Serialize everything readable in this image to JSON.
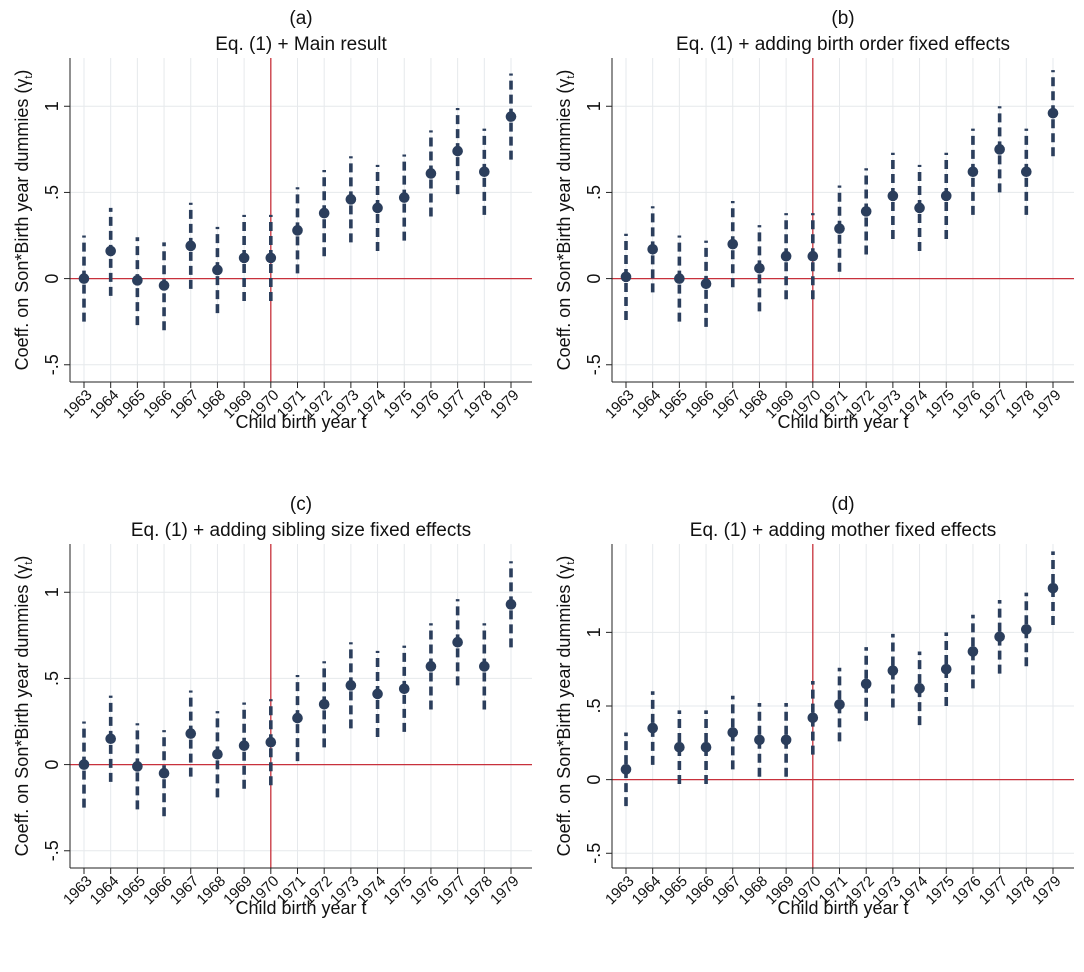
{
  "chart_data": [
    {
      "type": "scatter",
      "panel_label": "(a)",
      "title": "Eq. (1) + Main result",
      "xlabel": "Child birth year t",
      "ylabel": "Coeff. on Son*Birth year dummies (γ",
      "ylabel_subscript": "t",
      "ylabel_close": ")",
      "categories": [
        "1963",
        "1964",
        "1965",
        "1966",
        "1967",
        "1968",
        "1969",
        "1970",
        "1971",
        "1972",
        "1973",
        "1974",
        "1975",
        "1976",
        "1977",
        "1978",
        "1979"
      ],
      "y_ticks": [
        -0.5,
        0,
        0.5,
        1
      ],
      "y_tick_labels": [
        "-.5",
        "0",
        ".5",
        "1"
      ],
      "ylim": [
        -0.6,
        1.28
      ],
      "reference_x": "1970",
      "reference_y": 0,
      "series": [
        {
          "values": [
            0.0,
            0.16,
            -0.01,
            -0.04,
            0.19,
            0.05,
            0.12,
            0.12,
            0.28,
            0.38,
            0.46,
            0.41,
            0.47,
            0.61,
            0.74,
            0.62,
            0.94
          ],
          "ci_low": [
            -0.25,
            -0.1,
            -0.27,
            -0.3,
            -0.06,
            -0.2,
            -0.13,
            -0.13,
            0.03,
            0.13,
            0.21,
            0.16,
            0.22,
            0.36,
            0.49,
            0.37,
            0.69
          ],
          "ci_high": [
            0.25,
            0.41,
            0.24,
            0.21,
            0.44,
            0.3,
            0.37,
            0.37,
            0.53,
            0.63,
            0.71,
            0.66,
            0.72,
            0.86,
            0.99,
            0.87,
            1.19
          ]
        }
      ],
      "colors": {
        "marker": "#2b3e5c",
        "reference": "#c8313c",
        "grid": "#e6e9ec",
        "axis": "#222222"
      }
    },
    {
      "type": "scatter",
      "panel_label": "(b)",
      "title": "Eq. (1) + adding birth order fixed effects",
      "xlabel": "Child birth year t",
      "ylabel": "Coeff. on Son*Birth year dummies (γ",
      "ylabel_subscript": "t",
      "ylabel_close": ")",
      "categories": [
        "1963",
        "1964",
        "1965",
        "1966",
        "1967",
        "1968",
        "1969",
        "1970",
        "1971",
        "1972",
        "1973",
        "1974",
        "1975",
        "1976",
        "1977",
        "1978",
        "1979"
      ],
      "y_ticks": [
        -0.5,
        0,
        0.5,
        1
      ],
      "y_tick_labels": [
        "-.5",
        "0",
        ".5",
        "1"
      ],
      "ylim": [
        -0.6,
        1.28
      ],
      "reference_x": "1970",
      "reference_y": 0,
      "series": [
        {
          "values": [
            0.01,
            0.17,
            0.0,
            -0.03,
            0.2,
            0.06,
            0.13,
            0.13,
            0.29,
            0.39,
            0.48,
            0.41,
            0.48,
            0.62,
            0.75,
            0.62,
            0.96
          ],
          "ci_low": [
            -0.24,
            -0.08,
            -0.25,
            -0.28,
            -0.05,
            -0.19,
            -0.12,
            -0.12,
            0.04,
            0.14,
            0.23,
            0.16,
            0.23,
            0.37,
            0.5,
            0.37,
            0.71
          ],
          "ci_high": [
            0.26,
            0.42,
            0.25,
            0.22,
            0.45,
            0.31,
            0.38,
            0.38,
            0.54,
            0.64,
            0.73,
            0.66,
            0.73,
            0.87,
            1.0,
            0.87,
            1.21
          ]
        }
      ],
      "colors": {
        "marker": "#2b3e5c",
        "reference": "#c8313c",
        "grid": "#e6e9ec",
        "axis": "#222222"
      }
    },
    {
      "type": "scatter",
      "panel_label": "(c)",
      "title": "Eq. (1) + adding sibling size fixed effects",
      "xlabel": "Child birth year t",
      "ylabel": "Coeff. on Son*Birth year dummies (γ",
      "ylabel_subscript": "t",
      "ylabel_close": ")",
      "categories": [
        "1963",
        "1964",
        "1965",
        "1966",
        "1967",
        "1968",
        "1969",
        "1970",
        "1971",
        "1972",
        "1973",
        "1974",
        "1975",
        "1976",
        "1977",
        "1978",
        "1979"
      ],
      "y_ticks": [
        -0.5,
        0,
        0.5,
        1
      ],
      "y_tick_labels": [
        "-.5",
        "0",
        ".5",
        "1"
      ],
      "ylim": [
        -0.6,
        1.28
      ],
      "reference_x": "1970",
      "reference_y": 0,
      "series": [
        {
          "values": [
            0.0,
            0.15,
            -0.01,
            -0.05,
            0.18,
            0.06,
            0.11,
            0.13,
            0.27,
            0.35,
            0.46,
            0.41,
            0.44,
            0.57,
            0.71,
            0.57,
            0.93
          ],
          "ci_low": [
            -0.25,
            -0.1,
            -0.26,
            -0.3,
            -0.07,
            -0.19,
            -0.14,
            -0.12,
            0.02,
            0.1,
            0.21,
            0.16,
            0.19,
            0.32,
            0.46,
            0.32,
            0.68
          ],
          "ci_high": [
            0.25,
            0.4,
            0.24,
            0.2,
            0.43,
            0.31,
            0.36,
            0.38,
            0.52,
            0.6,
            0.71,
            0.66,
            0.69,
            0.82,
            0.96,
            0.82,
            1.18
          ]
        }
      ],
      "colors": {
        "marker": "#2b3e5c",
        "reference": "#c8313c",
        "grid": "#e6e9ec",
        "axis": "#222222"
      }
    },
    {
      "type": "scatter",
      "panel_label": "(d)",
      "title": "Eq. (1) + adding mother fixed effects",
      "xlabel": "Child birth year t",
      "ylabel": "Coeff. on Son*Birth year dummies (γ",
      "ylabel_subscript": "t",
      "ylabel_close": ")",
      "categories": [
        "1963",
        "1964",
        "1965",
        "1966",
        "1967",
        "1968",
        "1969",
        "1970",
        "1971",
        "1972",
        "1973",
        "1974",
        "1975",
        "1976",
        "1977",
        "1978",
        "1979"
      ],
      "y_ticks": [
        -0.5,
        0,
        0.5,
        1
      ],
      "y_tick_labels": [
        "-.5",
        "0",
        ".5",
        "1"
      ],
      "ylim": [
        -0.6,
        1.6
      ],
      "reference_x": "1970",
      "reference_y": 0,
      "series": [
        {
          "values": [
            0.07,
            0.35,
            0.22,
            0.22,
            0.32,
            0.27,
            0.27,
            0.42,
            0.51,
            0.65,
            0.74,
            0.62,
            0.75,
            0.87,
            0.97,
            1.02,
            1.3
          ],
          "ci_low": [
            -0.18,
            0.1,
            -0.03,
            -0.03,
            0.07,
            0.02,
            0.02,
            0.17,
            0.26,
            0.4,
            0.49,
            0.37,
            0.5,
            0.62,
            0.72,
            0.77,
            1.05
          ],
          "ci_high": [
            0.32,
            0.6,
            0.47,
            0.47,
            0.57,
            0.52,
            0.52,
            0.67,
            0.76,
            0.9,
            0.99,
            0.87,
            1.0,
            1.12,
            1.22,
            1.27,
            1.55
          ]
        }
      ],
      "colors": {
        "marker": "#2b3e5c",
        "reference": "#c8313c",
        "grid": "#e6e9ec",
        "axis": "#222222"
      }
    }
  ]
}
